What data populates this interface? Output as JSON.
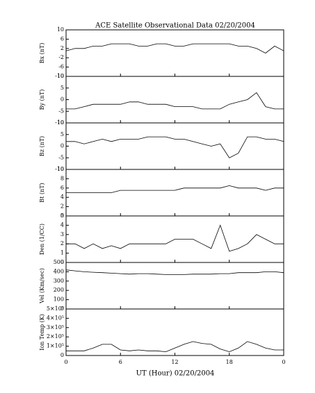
{
  "title": "ACE Satellite Observational Data   02/20/2004",
  "x_label": "UT (Hour)   02/20/2004",
  "chart_data": [
    {
      "type": "line",
      "y_label": "Bx (nT)",
      "color": "#000000",
      "x": [
        0,
        1,
        2,
        3,
        4,
        5,
        6,
        7,
        8,
        9,
        10,
        11,
        12,
        13,
        14,
        15,
        16,
        17,
        18,
        19,
        20,
        21,
        22,
        23,
        24
      ],
      "values": [
        1,
        2,
        2,
        3,
        3,
        4,
        4,
        4,
        3,
        3,
        4,
        4,
        3,
        3,
        4,
        4,
        4,
        4,
        4,
        3,
        3,
        2,
        0,
        3,
        1
      ],
      "xlim": [
        0,
        24
      ],
      "xticks": [
        0,
        6,
        12,
        18,
        {
          "value": 24,
          "label": "0"
        }
      ],
      "ylim": [
        -10,
        10
      ],
      "yticks": [
        -10,
        -6,
        -2,
        2,
        6,
        10
      ]
    },
    {
      "type": "line",
      "y_label": "By (nT)",
      "color": "#000000",
      "x": [
        0,
        1,
        2,
        3,
        4,
        5,
        6,
        7,
        8,
        9,
        10,
        11,
        12,
        13,
        14,
        15,
        16,
        17,
        18,
        19,
        20,
        21,
        22,
        23,
        24
      ],
      "values": [
        -4,
        -4,
        -3,
        -2,
        -2,
        -2,
        -2,
        -1,
        -1,
        -2,
        -2,
        -2,
        -3,
        -3,
        -3,
        -4,
        -4,
        -4,
        -2,
        -1,
        0,
        3,
        -3,
        -4,
        -4
      ],
      "xlim": [
        0,
        24
      ],
      "xticks": [
        0,
        6,
        12,
        18,
        {
          "value": 24,
          "label": "0"
        }
      ],
      "ylim": [
        -10,
        10
      ],
      "yticks": [
        -10,
        -5,
        0,
        5,
        10
      ]
    },
    {
      "type": "line",
      "y_label": "Bz (nT)",
      "color": "#000000",
      "x": [
        0,
        1,
        2,
        3,
        4,
        5,
        6,
        7,
        8,
        9,
        10,
        11,
        12,
        13,
        14,
        15,
        16,
        17,
        18,
        19,
        20,
        21,
        22,
        23,
        24
      ],
      "values": [
        2,
        2,
        1,
        2,
        3,
        2,
        3,
        3,
        3,
        4,
        4,
        4,
        3,
        3,
        2,
        1,
        0,
        1,
        -5,
        -3,
        4,
        4,
        3,
        3,
        2
      ],
      "xlim": [
        0,
        24
      ],
      "xticks": [
        0,
        6,
        12,
        18,
        {
          "value": 24,
          "label": "0"
        }
      ],
      "ylim": [
        -10,
        10
      ],
      "yticks": [
        -10,
        -5,
        0,
        5,
        10
      ]
    },
    {
      "type": "line",
      "y_label": "Bt (nT)",
      "color": "#000000",
      "x": [
        0,
        1,
        2,
        3,
        4,
        5,
        6,
        7,
        8,
        9,
        10,
        11,
        12,
        13,
        14,
        15,
        16,
        17,
        18,
        19,
        20,
        21,
        22,
        23,
        24
      ],
      "values": [
        5,
        5,
        5,
        5,
        5,
        5,
        5.5,
        5.5,
        5.5,
        5.5,
        5.5,
        5.5,
        5.5,
        6,
        6,
        6,
        6,
        6,
        6.5,
        6,
        6,
        6,
        5.5,
        6,
        6
      ],
      "xlim": [
        0,
        24
      ],
      "xticks": [
        0,
        6,
        12,
        18,
        {
          "value": 24,
          "label": "0"
        }
      ],
      "ylim": [
        0,
        10
      ],
      "yticks": [
        0,
        2,
        4,
        6,
        8,
        10
      ]
    },
    {
      "type": "line",
      "y_label": "Den (1/CC)",
      "color": "#000000",
      "x": [
        0,
        1,
        2,
        3,
        4,
        5,
        6,
        7,
        8,
        9,
        10,
        11,
        12,
        13,
        14,
        15,
        16,
        17,
        18,
        19,
        20,
        21,
        22,
        23,
        24
      ],
      "values": [
        2,
        2,
        1.5,
        2,
        1.5,
        1.8,
        1.5,
        2,
        2,
        2,
        2,
        2,
        2.5,
        2.5,
        2.5,
        2,
        1.5,
        4,
        1.2,
        1.5,
        2,
        3,
        2.5,
        2,
        2
      ],
      "xlim": [
        0,
        24
      ],
      "xticks": [
        0,
        6,
        12,
        18,
        {
          "value": 24,
          "label": "0"
        }
      ],
      "ylim": [
        0,
        5
      ],
      "yticks": [
        0,
        1,
        2,
        3,
        4,
        5
      ]
    },
    {
      "type": "line",
      "y_label": "Vel (Km/sec)",
      "color": "#000000",
      "x": [
        0,
        1,
        2,
        3,
        4,
        5,
        6,
        7,
        8,
        9,
        10,
        11,
        12,
        13,
        14,
        15,
        16,
        17,
        18,
        19,
        20,
        21,
        22,
        23,
        24
      ],
      "values": [
        420,
        410,
        400,
        395,
        390,
        385,
        380,
        375,
        380,
        380,
        375,
        370,
        370,
        370,
        375,
        375,
        375,
        380,
        380,
        390,
        390,
        390,
        400,
        400,
        390
      ],
      "xlim": [
        0,
        24
      ],
      "xticks": [
        0,
        6,
        12,
        18,
        {
          "value": 24,
          "label": "0"
        }
      ],
      "ylim": [
        0,
        500
      ],
      "yticks": [
        0,
        100,
        200,
        300,
        400,
        500
      ]
    },
    {
      "type": "line",
      "y_label": "Ion Temp (K)",
      "color": "#000000",
      "x": [
        0,
        1,
        2,
        3,
        4,
        5,
        6,
        7,
        8,
        9,
        10,
        11,
        12,
        13,
        14,
        15,
        16,
        17,
        18,
        19,
        20,
        21,
        22,
        23,
        24
      ],
      "values": [
        50000,
        50000,
        50000,
        80000,
        120000,
        120000,
        60000,
        50000,
        60000,
        50000,
        50000,
        40000,
        80000,
        120000,
        150000,
        130000,
        120000,
        70000,
        40000,
        80000,
        150000,
        120000,
        80000,
        60000,
        60000
      ],
      "xlim": [
        0,
        24
      ],
      "xticks": [
        0,
        6,
        12,
        18,
        {
          "value": 24,
          "label": "0"
        }
      ],
      "ylim": [
        0,
        500000
      ],
      "yticks": [
        0,
        {
          "value": 100000,
          "label": "1×10⁵"
        },
        {
          "value": 200000,
          "label": "2×10⁵"
        },
        {
          "value": 300000,
          "label": "3×10⁵"
        },
        {
          "value": 400000,
          "label": "4×10⁵"
        },
        {
          "value": 500000,
          "label": "5×10⁵"
        }
      ]
    }
  ]
}
